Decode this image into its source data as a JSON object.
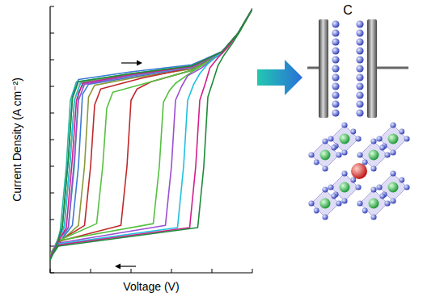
{
  "chart_data": {
    "type": "line",
    "xlabel": "Voltage (V)",
    "ylabel": "Current Density (A cm⁻²)",
    "annotations": [
      {
        "text": "C"
      }
    ],
    "log": "y",
    "grid": false,
    "tick_labels": false,
    "xlim": [
      0,
      1
    ],
    "xticks": [
      0,
      0.2,
      0.4,
      0.6,
      0.8,
      1
    ],
    "ylim": [
      1e-10,
      1
    ],
    "yticks": [
      1e-10,
      1e-09,
      1e-08,
      1e-07,
      1e-06,
      1e-05,
      0.0001,
      0.001,
      0.01,
      0.1,
      1
    ],
    "series": [
      {
        "color": "#26b8a0",
        "x": [
          0,
          0.03,
          0.05,
          0.08,
          0.1,
          0.13,
          0.4,
          0.7,
          0.85,
          0.93,
          1,
          0.93,
          0.85,
          0.7,
          0.4,
          0.17,
          0.14,
          0.12,
          0.09,
          0.04,
          0
        ],
        "values": [
          3e-10,
          1e-09,
          4e-09,
          1e-06,
          0.0003,
          0.0015,
          0.003,
          0.006,
          0.02,
          0.1,
          0.8,
          0.1,
          0.02,
          0.005,
          0.0025,
          0.0014,
          0.0006,
          1e-06,
          5e-09,
          1e-09,
          4e-10
        ]
      },
      {
        "color": "#3b7bd4",
        "x": [
          0,
          0.03,
          0.06,
          0.09,
          0.11,
          0.14,
          0.4,
          0.7,
          0.85,
          0.93,
          1,
          0.93,
          0.85,
          0.7,
          0.4,
          0.19,
          0.16,
          0.14,
          0.11,
          0.04,
          0
        ],
        "values": [
          3.5e-10,
          1.2e-09,
          5e-09,
          2e-06,
          0.0004,
          0.0018,
          0.0035,
          0.0065,
          0.02,
          0.1,
          0.8,
          0.1,
          0.02,
          0.005,
          0.0022,
          0.0012,
          0.0005,
          1e-06,
          6e-09,
          1.2e-09,
          4e-10
        ]
      },
      {
        "color": "#8a9a3a",
        "x": [
          0,
          0.03,
          0.07,
          0.1,
          0.12,
          0.15,
          0.4,
          0.7,
          0.85,
          0.93,
          1,
          0.93,
          0.85,
          0.7,
          0.4,
          0.22,
          0.19,
          0.17,
          0.14,
          0.04,
          0
        ],
        "values": [
          4e-10,
          1.3e-09,
          6e-09,
          2e-06,
          0.0003,
          0.0014,
          0.0028,
          0.0055,
          0.019,
          0.1,
          0.8,
          0.1,
          0.019,
          0.0045,
          0.002,
          0.0011,
          0.0004,
          1e-06,
          6e-09,
          1.3e-09,
          5e-10
        ]
      },
      {
        "color": "#c0282a",
        "x": [
          0,
          0.04,
          0.17,
          0.2,
          0.22,
          0.25,
          0.45,
          0.7,
          0.85,
          0.93,
          1,
          0.93,
          0.85,
          0.7,
          0.5,
          0.43,
          0.4,
          0.38,
          0.35,
          0.04,
          0
        ],
        "values": [
          5e-10,
          1.5e-09,
          6e-09,
          1e-06,
          0.0002,
          0.0008,
          0.002,
          0.005,
          0.018,
          0.1,
          0.8,
          0.1,
          0.018,
          0.004,
          0.0015,
          0.0008,
          0.0003,
          1e-06,
          6e-09,
          1.5e-09,
          5e-10
        ]
      },
      {
        "color": "#55c040",
        "x": [
          0,
          0.04,
          0.23,
          0.26,
          0.28,
          0.31,
          0.5,
          0.7,
          0.85,
          0.93,
          1,
          0.93,
          0.85,
          0.7,
          0.62,
          0.59,
          0.56,
          0.54,
          0.51,
          0.04,
          0
        ],
        "values": [
          5e-10,
          1.6e-09,
          7e-09,
          1e-06,
          0.00015,
          0.0006,
          0.0015,
          0.004,
          0.017,
          0.1,
          0.8,
          0.1,
          0.017,
          0.0035,
          0.0013,
          0.0007,
          0.00025,
          1e-06,
          7e-09,
          1.6e-09,
          5e-10
        ]
      },
      {
        "color": "#9a4fd0",
        "x": [
          0,
          0.03,
          0.09,
          0.12,
          0.14,
          0.17,
          0.4,
          0.7,
          0.85,
          0.93,
          1,
          0.93,
          0.85,
          0.75,
          0.68,
          0.65,
          0.62,
          0.6,
          0.57,
          0.04,
          0
        ],
        "values": [
          4e-10,
          1.3e-09,
          5e-09,
          2e-06,
          0.0003,
          0.0012,
          0.0025,
          0.005,
          0.019,
          0.1,
          0.8,
          0.1,
          0.019,
          0.005,
          0.0025,
          0.001,
          0.0003,
          1e-06,
          6e-09,
          1.3e-09,
          4e-10
        ]
      },
      {
        "color": "#20c0e0",
        "x": [
          0,
          0.03,
          0.07,
          0.1,
          0.12,
          0.15,
          0.4,
          0.7,
          0.85,
          0.93,
          1,
          0.93,
          0.85,
          0.78,
          0.74,
          0.71,
          0.68,
          0.66,
          0.63,
          0.04,
          0
        ],
        "values": [
          3.5e-10,
          1.2e-09,
          5e-09,
          2e-06,
          0.0003,
          0.0013,
          0.0026,
          0.0052,
          0.019,
          0.1,
          0.8,
          0.1,
          0.02,
          0.007,
          0.003,
          0.0012,
          0.0003,
          1e-06,
          5e-09,
          1.2e-09,
          4e-10
        ]
      },
      {
        "color": "#d0208a",
        "x": [
          0,
          0.03,
          0.08,
          0.11,
          0.13,
          0.16,
          0.4,
          0.7,
          0.85,
          0.93,
          1,
          0.93,
          0.88,
          0.83,
          0.79,
          0.77,
          0.74,
          0.72,
          0.69,
          0.04,
          0
        ],
        "values": [
          3.5e-10,
          1.1e-09,
          5e-09,
          2e-06,
          0.0003,
          0.0013,
          0.0027,
          0.0054,
          0.02,
          0.1,
          0.8,
          0.1,
          0.03,
          0.012,
          0.005,
          0.0015,
          0.0003,
          1e-06,
          5e-09,
          1.1e-09,
          4e-10
        ]
      },
      {
        "color": "#1f8a3a",
        "x": [
          0,
          0.03,
          0.06,
          0.09,
          0.11,
          0.14,
          0.4,
          0.7,
          0.85,
          0.93,
          1,
          0.94,
          0.9,
          0.86,
          0.83,
          0.81,
          0.78,
          0.76,
          0.73,
          0.04,
          0
        ],
        "values": [
          3e-10,
          1e-09,
          5e-09,
          2e-06,
          0.00035,
          0.0015,
          0.003,
          0.0058,
          0.02,
          0.1,
          0.8,
          0.12,
          0.04,
          0.015,
          0.006,
          0.002,
          0.0004,
          1e-06,
          5e-09,
          1e-09,
          3.5e-10
        ]
      }
    ]
  }
}
